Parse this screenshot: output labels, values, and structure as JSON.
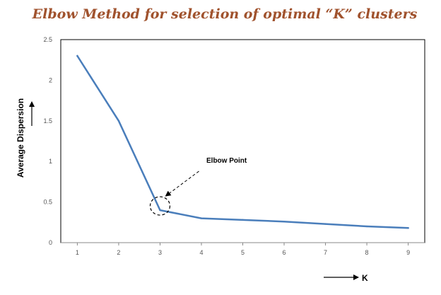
{
  "colors": {
    "title": "#a0522d",
    "line": "#4a7ebb",
    "axis": "#888888",
    "frame": "#000000",
    "annotation": "#000000"
  },
  "chart_data": {
    "type": "line",
    "title": "Elbow Method for selection of optimal “K” clusters",
    "xlabel": "K",
    "ylabel": "Average Dispersion",
    "x": [
      1,
      2,
      3,
      4,
      5,
      6,
      7,
      8,
      9
    ],
    "x_ticks": [
      "1",
      "2",
      "3",
      "4",
      "5",
      "6",
      "7",
      "8",
      "9"
    ],
    "y_ticks": [
      "0",
      "0.5",
      "1",
      "1.5",
      "2",
      "2.5"
    ],
    "ylim": [
      0,
      2.5
    ],
    "xlim": [
      0.6,
      9.4
    ],
    "grid": false,
    "series": [
      {
        "name": "Average Dispersion",
        "values": [
          2.3,
          1.5,
          0.4,
          0.3,
          0.28,
          0.26,
          0.23,
          0.2,
          0.18
        ]
      }
    ],
    "annotations": [
      {
        "text": "Elbow Point",
        "x": 3,
        "y": 0.4
      }
    ]
  }
}
